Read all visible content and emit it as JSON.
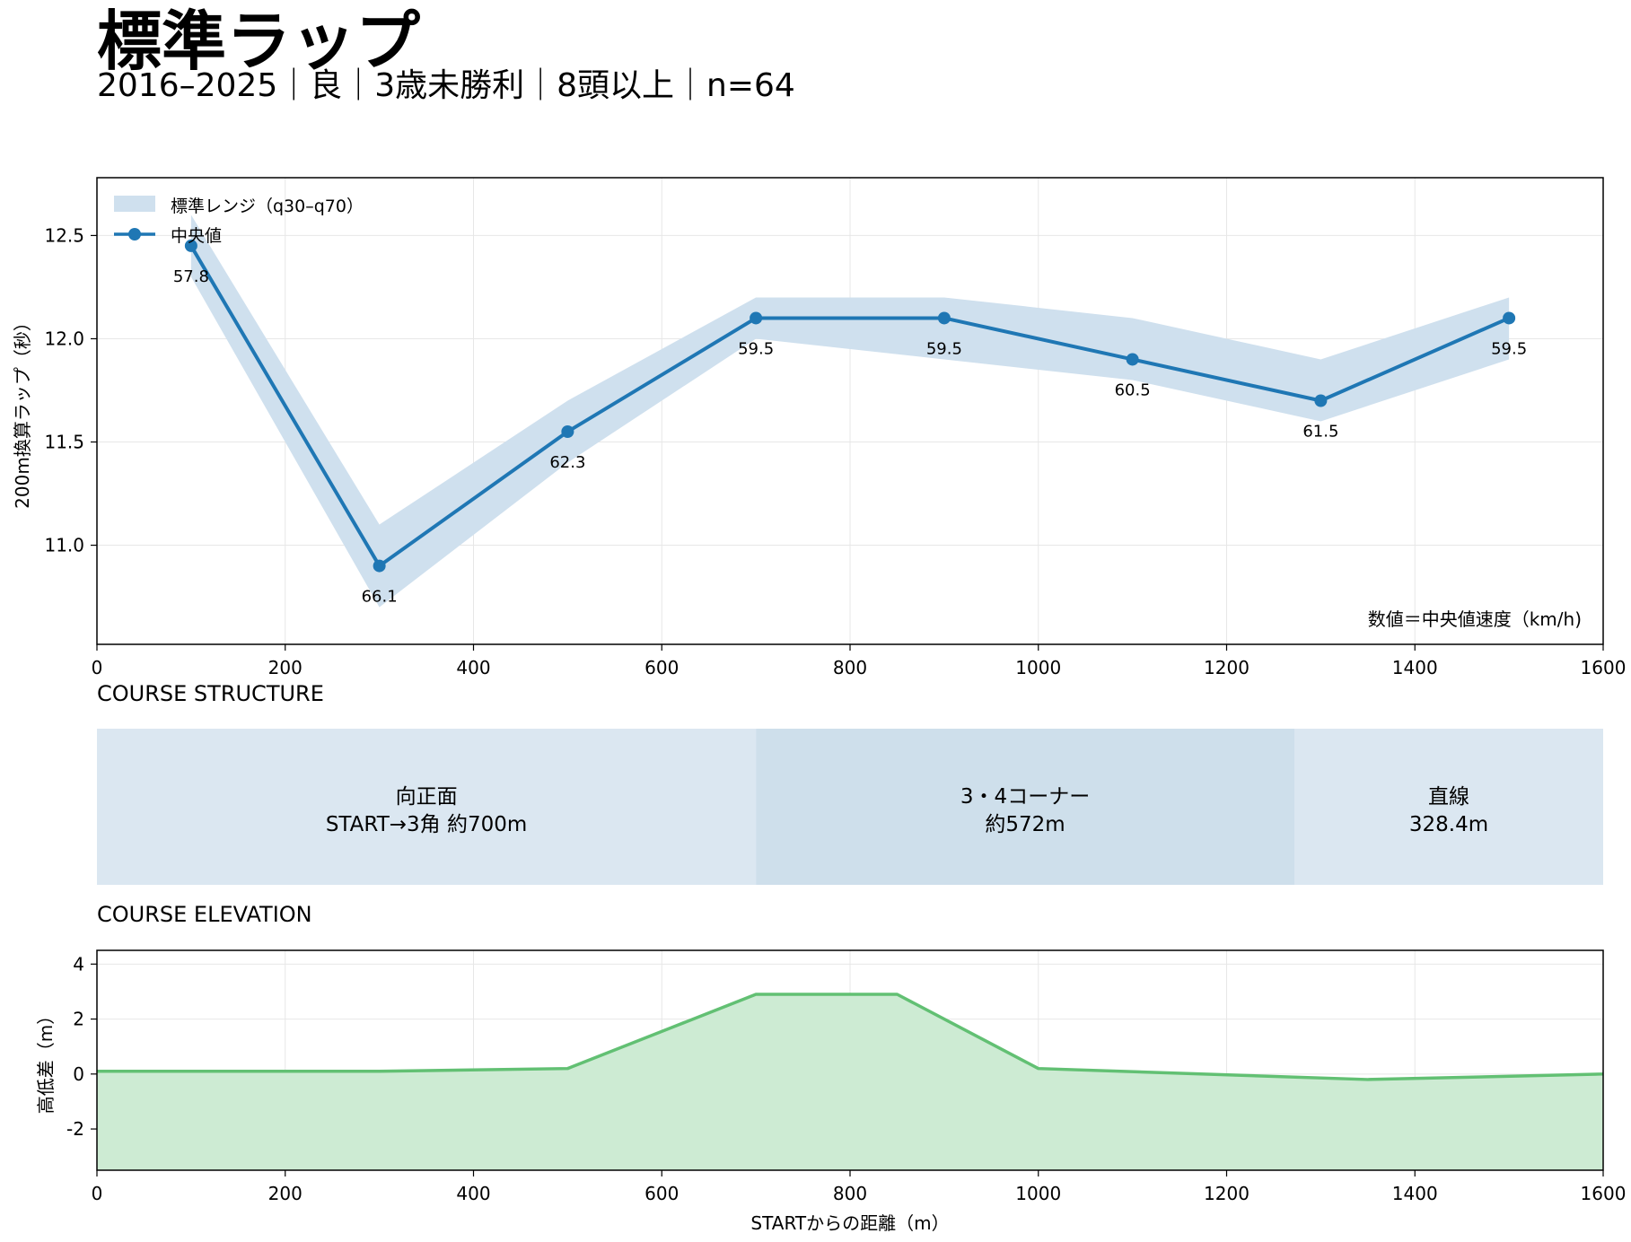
{
  "header": {
    "title": "標準ラップ",
    "subtitle": "2016–2025｜良｜3歳未勝利｜8頭以上｜n=64"
  },
  "chart_data": [
    {
      "type": "line",
      "ylabel": "200m換算ラップ（秒）",
      "xlim": [
        0,
        1600
      ],
      "ylim": [
        12.78,
        10.52
      ],
      "y_inverted": true,
      "x_ticks": [
        0,
        200,
        400,
        600,
        800,
        1000,
        1200,
        1400,
        1600
      ],
      "y_ticks": [
        11.0,
        11.5,
        12.0,
        12.5
      ],
      "grid": true,
      "legend": {
        "position": "top-left",
        "band_label": "標準レンジ（q30–q70）",
        "line_label": "中央値"
      },
      "x": [
        100,
        300,
        500,
        700,
        900,
        1100,
        1300,
        1500
      ],
      "median": [
        12.45,
        10.9,
        11.55,
        12.1,
        12.1,
        11.9,
        11.7,
        12.1
      ],
      "band_low": [
        12.3,
        10.7,
        11.4,
        12.0,
        11.9,
        11.8,
        11.6,
        11.9
      ],
      "band_high": [
        12.6,
        11.1,
        11.7,
        12.2,
        12.2,
        12.1,
        11.9,
        12.2
      ],
      "speed_labels": [
        "57.8",
        "66.1",
        "62.3",
        "59.5",
        "59.5",
        "60.5",
        "61.5",
        "59.5"
      ],
      "note": "数値＝中央値速度（km/h)",
      "colors": {
        "line": "#1f77b4",
        "band": "#cfe0ee"
      }
    },
    {
      "type": "segments",
      "section_title": "COURSE STRUCTURE",
      "segments": [
        {
          "start": 0,
          "end": 700,
          "line1": "向正面",
          "line2": "START→3角 約700m",
          "color": "#dbe7f1"
        },
        {
          "start": 700,
          "end": 1272,
          "line1": "3・4コーナー",
          "line2": "約572m",
          "color": "#cedfeb"
        },
        {
          "start": 1272,
          "end": 1600,
          "line1": "直線",
          "line2": "328.4m",
          "color": "#dbe7f1"
        }
      ]
    },
    {
      "type": "area",
      "section_title": "COURSE ELEVATION",
      "xlabel": "STARTからの距離（m）",
      "ylabel": "高低差（m）",
      "xlim": [
        0,
        1600
      ],
      "ylim": [
        -3.5,
        4.5
      ],
      "x_ticks": [
        0,
        200,
        400,
        600,
        800,
        1000,
        1200,
        1400,
        1600
      ],
      "y_ticks": [
        4,
        2,
        0,
        -2
      ],
      "grid": true,
      "x": [
        0,
        300,
        500,
        700,
        850,
        1000,
        1350,
        1600
      ],
      "y": [
        0.1,
        0.1,
        0.2,
        2.9,
        2.9,
        0.2,
        -0.2,
        0.0
      ],
      "colors": {
        "line": "#62c073",
        "fill": "#cdebd3"
      }
    }
  ]
}
